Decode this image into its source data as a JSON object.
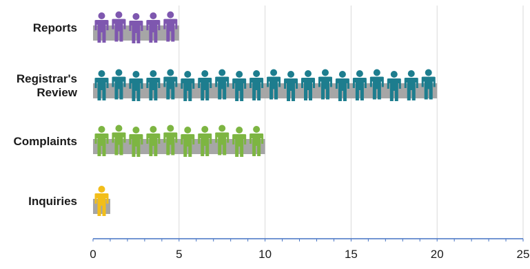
{
  "chart_data": {
    "type": "bar",
    "orientation": "horizontal",
    "style": "pictograph",
    "categories": [
      "Reports",
      "Registrar's Review",
      "Complaints",
      "Inquiries"
    ],
    "category_label_lines": [
      [
        "Reports"
      ],
      [
        "Registrar's",
        "Review"
      ],
      [
        "Complaints"
      ],
      [
        "Inquiries"
      ]
    ],
    "values": [
      5,
      20,
      10,
      1
    ],
    "icon": "person-icon",
    "icon_colors": [
      "#7E57AF",
      "#1D7D8E",
      "#7DB542",
      "#F2BE1A"
    ],
    "bar_color": "#A6A6A6",
    "xlim": [
      0,
      25
    ],
    "x_ticks": [
      "0",
      "5",
      "10",
      "15",
      "20",
      "25"
    ],
    "grid": true,
    "gridline_color": "#D9D9D9",
    "axis_color": "#4472C4",
    "legend": "none",
    "title": "",
    "xlabel": "",
    "ylabel": ""
  }
}
